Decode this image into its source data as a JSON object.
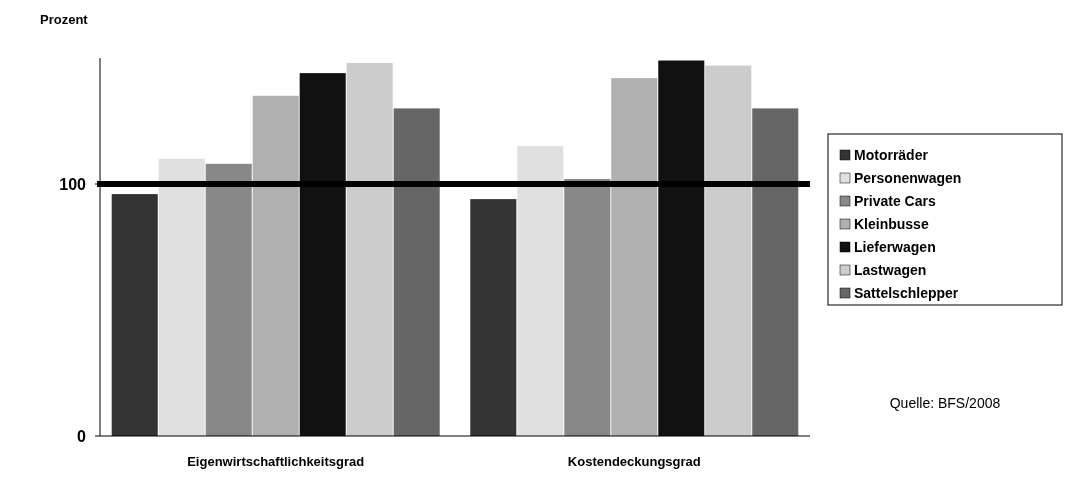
{
  "chart_data": {
    "type": "bar",
    "ylabel": "Prozent",
    "categories": [
      "Eigenwirtschaftlichkeitsgrad",
      "Kostendeckungsgrad"
    ],
    "series": [
      {
        "name": "Motorräder",
        "color": "#333333",
        "values": [
          96,
          94
        ]
      },
      {
        "name": "Personenwagen",
        "color": "#e0e0e0",
        "values": [
          110,
          115
        ]
      },
      {
        "name": "Private Cars",
        "color": "#888888",
        "values": [
          108,
          102
        ]
      },
      {
        "name": "Kleinbusse",
        "color": "#b0b0b0",
        "values": [
          135,
          142
        ]
      },
      {
        "name": "Lieferwagen",
        "color": "#111111",
        "values": [
          144,
          149
        ]
      },
      {
        "name": "Lastwagen",
        "color": "#cccccc",
        "values": [
          148,
          147
        ]
      },
      {
        "name": "Sattelschlepper",
        "color": "#666666",
        "values": [
          130,
          130
        ]
      }
    ],
    "ylim": [
      0,
      150
    ],
    "yticks": [
      0,
      100
    ],
    "legend": "right",
    "grid": false,
    "ref_lines": [
      {
        "axis": "y",
        "value": 100,
        "color": "#000000"
      }
    ],
    "annotations": [
      "Quelle: BFS/2008"
    ]
  }
}
